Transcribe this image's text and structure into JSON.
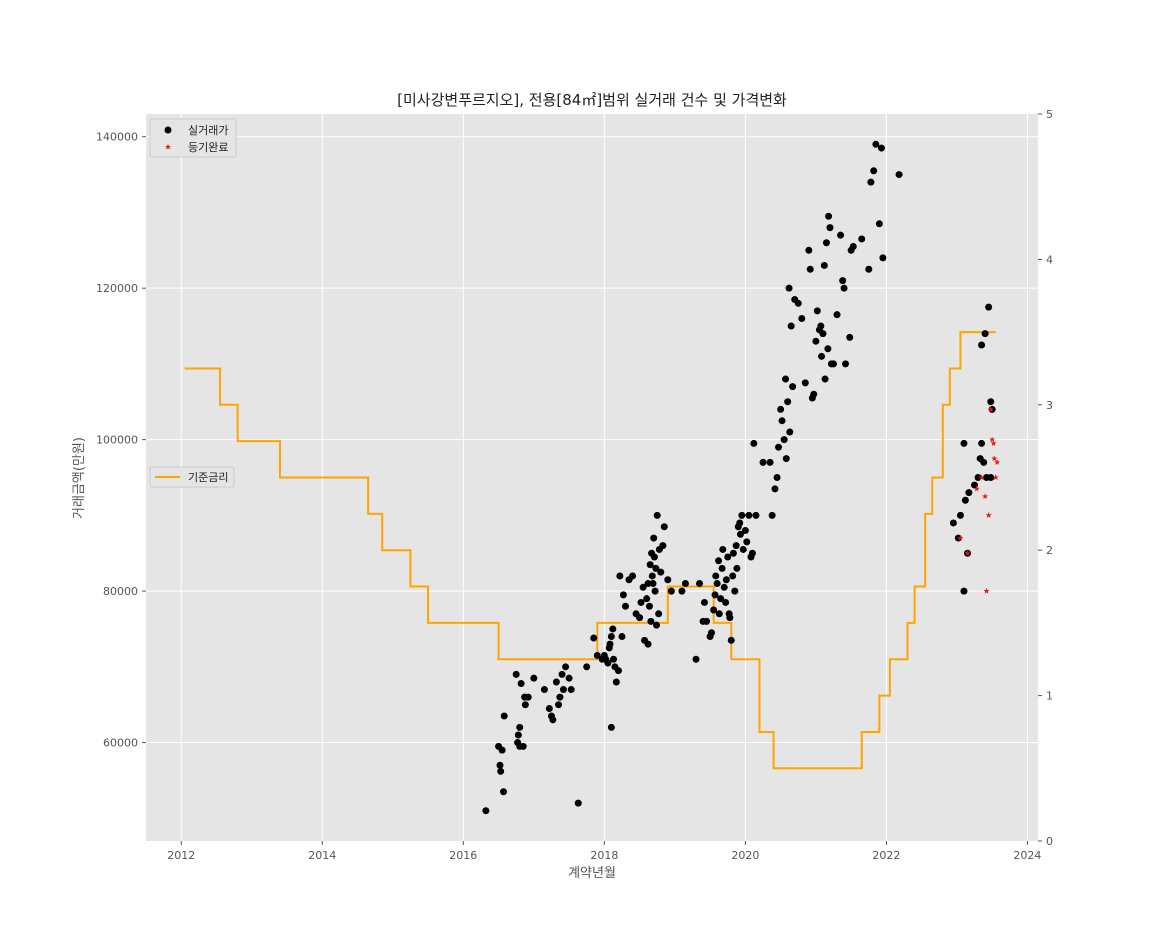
{
  "chart_data": {
    "type": "scatter",
    "title": "[미사강변푸르지오], 전용[84㎡]범위 실거래 건수 및 가격변화",
    "xlabel": "계약년월",
    "ylabel": "거래금액(만원)",
    "y2label": "",
    "xlim": [
      2011.5,
      2024.15
    ],
    "ylim": [
      47000,
      143000
    ],
    "y2lim": [
      0,
      5
    ],
    "xticks": [
      2012,
      2014,
      2016,
      2018,
      2020,
      2022,
      2024
    ],
    "yticks": [
      60000,
      80000,
      100000,
      120000,
      140000
    ],
    "y2ticks": [
      0,
      1,
      2,
      3,
      4,
      5
    ],
    "grid": true,
    "legend_placement": "top-left",
    "legend2_placement": "center-left",
    "colors": {
      "background": "#e5e5e5",
      "grid": "#ffffff",
      "trade": "#000000",
      "registered": "#e8180c",
      "rate": "#ffa500"
    },
    "series": [
      {
        "name": "실거래가",
        "kind": "scatter",
        "marker": "circle",
        "points": [
          [
            2016.32,
            51000
          ],
          [
            2016.5,
            59500
          ],
          [
            2016.52,
            57000
          ],
          [
            2016.53,
            56200
          ],
          [
            2016.55,
            59000
          ],
          [
            2016.57,
            53500
          ],
          [
            2016.58,
            63500
          ],
          [
            2016.75,
            69000
          ],
          [
            2016.77,
            60000
          ],
          [
            2016.78,
            61000
          ],
          [
            2016.8,
            62000
          ],
          [
            2016.8,
            59500
          ],
          [
            2016.82,
            67800
          ],
          [
            2016.85,
            59500
          ],
          [
            2016.87,
            66000
          ],
          [
            2016.88,
            65000
          ],
          [
            2016.92,
            66000
          ],
          [
            2017.0,
            68500
          ],
          [
            2017.15,
            67000
          ],
          [
            2017.22,
            64500
          ],
          [
            2017.25,
            63500
          ],
          [
            2017.27,
            63000
          ],
          [
            2017.32,
            68000
          ],
          [
            2017.35,
            65000
          ],
          [
            2017.37,
            66000
          ],
          [
            2017.4,
            69000
          ],
          [
            2017.42,
            67000
          ],
          [
            2017.45,
            70000
          ],
          [
            2017.5,
            68500
          ],
          [
            2017.53,
            67000
          ],
          [
            2017.63,
            52000
          ],
          [
            2017.75,
            70000
          ],
          [
            2017.85,
            73800
          ],
          [
            2017.9,
            71500
          ],
          [
            2017.97,
            71000
          ],
          [
            2018.0,
            71500
          ],
          [
            2018.02,
            71000
          ],
          [
            2018.05,
            70500
          ],
          [
            2018.07,
            72500
          ],
          [
            2018.08,
            73000
          ],
          [
            2018.1,
            74000
          ],
          [
            2018.12,
            75000
          ],
          [
            2018.13,
            71000
          ],
          [
            2018.1,
            62000
          ],
          [
            2018.15,
            70000
          ],
          [
            2018.17,
            68000
          ],
          [
            2018.2,
            69500
          ],
          [
            2018.22,
            82000
          ],
          [
            2018.25,
            74000
          ],
          [
            2018.27,
            79500
          ],
          [
            2018.3,
            78000
          ],
          [
            2018.35,
            81500
          ],
          [
            2018.4,
            82000
          ],
          [
            2018.45,
            77000
          ],
          [
            2018.5,
            76500
          ],
          [
            2018.52,
            78500
          ],
          [
            2018.55,
            80500
          ],
          [
            2018.57,
            73500
          ],
          [
            2018.6,
            79000
          ],
          [
            2018.62,
            81000
          ],
          [
            2018.65,
            83500
          ],
          [
            2018.67,
            85000
          ],
          [
            2018.68,
            82000
          ],
          [
            2018.7,
            87000
          ],
          [
            2018.72,
            80000
          ],
          [
            2018.73,
            83000
          ],
          [
            2018.75,
            90000
          ],
          [
            2018.77,
            77000
          ],
          [
            2018.78,
            85500
          ],
          [
            2018.8,
            82500
          ],
          [
            2018.83,
            86000
          ],
          [
            2018.85,
            88500
          ],
          [
            2018.62,
            73000
          ],
          [
            2018.64,
            78000
          ],
          [
            2018.66,
            76000
          ],
          [
            2018.69,
            81000
          ],
          [
            2018.71,
            84500
          ],
          [
            2018.74,
            75500
          ],
          [
            2018.9,
            81500
          ],
          [
            2018.95,
            80000
          ],
          [
            2019.1,
            80000
          ],
          [
            2019.15,
            81000
          ],
          [
            2019.3,
            71000
          ],
          [
            2019.35,
            81000
          ],
          [
            2019.4,
            76000
          ],
          [
            2019.42,
            78500
          ],
          [
            2019.45,
            76000
          ],
          [
            2019.5,
            74000
          ],
          [
            2019.52,
            74500
          ],
          [
            2019.55,
            77500
          ],
          [
            2019.57,
            79500
          ],
          [
            2019.58,
            82000
          ],
          [
            2019.6,
            81000
          ],
          [
            2019.62,
            84000
          ],
          [
            2019.63,
            77000
          ],
          [
            2019.65,
            79000
          ],
          [
            2019.67,
            83000
          ],
          [
            2019.68,
            85500
          ],
          [
            2019.7,
            80500
          ],
          [
            2019.72,
            78500
          ],
          [
            2019.73,
            81500
          ],
          [
            2019.75,
            84500
          ],
          [
            2019.77,
            77000
          ],
          [
            2019.78,
            76500
          ],
          [
            2019.8,
            73500
          ],
          [
            2019.82,
            82000
          ],
          [
            2019.83,
            85000
          ],
          [
            2019.85,
            80000
          ],
          [
            2019.87,
            86000
          ],
          [
            2019.88,
            83000
          ],
          [
            2019.9,
            88500
          ],
          [
            2019.92,
            89000
          ],
          [
            2019.93,
            87500
          ],
          [
            2019.95,
            90000
          ],
          [
            2019.97,
            85500
          ],
          [
            2020.0,
            88000
          ],
          [
            2020.02,
            86500
          ],
          [
            2020.05,
            90000
          ],
          [
            2020.08,
            84500
          ],
          [
            2020.1,
            85000
          ],
          [
            2020.12,
            99500
          ],
          [
            2020.15,
            90000
          ],
          [
            2020.25,
            97000
          ],
          [
            2020.35,
            97000
          ],
          [
            2020.38,
            90000
          ],
          [
            2020.42,
            93500
          ],
          [
            2020.45,
            95000
          ],
          [
            2020.47,
            99000
          ],
          [
            2020.5,
            104000
          ],
          [
            2020.52,
            102500
          ],
          [
            2020.55,
            100000
          ],
          [
            2020.57,
            108000
          ],
          [
            2020.58,
            97500
          ],
          [
            2020.6,
            105000
          ],
          [
            2020.62,
            120000
          ],
          [
            2020.63,
            101000
          ],
          [
            2020.65,
            115000
          ],
          [
            2020.67,
            107000
          ],
          [
            2020.7,
            118500
          ],
          [
            2020.75,
            118000
          ],
          [
            2020.8,
            116000
          ],
          [
            2020.85,
            107500
          ],
          [
            2020.9,
            125000
          ],
          [
            2020.92,
            122500
          ],
          [
            2020.95,
            105500
          ],
          [
            2020.97,
            106000
          ],
          [
            2021.0,
            113000
          ],
          [
            2021.02,
            117000
          ],
          [
            2021.05,
            114500
          ],
          [
            2021.07,
            115000
          ],
          [
            2021.08,
            111000
          ],
          [
            2021.1,
            114000
          ],
          [
            2021.12,
            123000
          ],
          [
            2021.13,
            108000
          ],
          [
            2021.15,
            126000
          ],
          [
            2021.17,
            112000
          ],
          [
            2021.18,
            129500
          ],
          [
            2021.2,
            128000
          ],
          [
            2021.22,
            110000
          ],
          [
            2021.25,
            110000
          ],
          [
            2021.3,
            116500
          ],
          [
            2021.35,
            127000
          ],
          [
            2021.38,
            121000
          ],
          [
            2021.4,
            120000
          ],
          [
            2021.42,
            110000
          ],
          [
            2021.48,
            113500
          ],
          [
            2021.5,
            125000
          ],
          [
            2021.53,
            125500
          ],
          [
            2021.65,
            126500
          ],
          [
            2021.75,
            122500
          ],
          [
            2021.78,
            134000
          ],
          [
            2021.82,
            135500
          ],
          [
            2021.85,
            139000
          ],
          [
            2021.9,
            128500
          ],
          [
            2021.95,
            124000
          ],
          [
            2021.93,
            138500
          ],
          [
            2022.18,
            135000
          ],
          [
            2022.95,
            89000
          ],
          [
            2023.02,
            87000
          ],
          [
            2023.05,
            90000
          ],
          [
            2023.1,
            80000
          ],
          [
            2023.1,
            99500
          ],
          [
            2023.12,
            92000
          ],
          [
            2023.15,
            85000
          ],
          [
            2023.17,
            93000
          ],
          [
            2023.25,
            94000
          ],
          [
            2023.3,
            95000
          ],
          [
            2023.33,
            97500
          ],
          [
            2023.35,
            99500
          ],
          [
            2023.38,
            97000
          ],
          [
            2023.4,
            114000
          ],
          [
            2023.42,
            95000
          ],
          [
            2023.45,
            117500
          ],
          [
            2023.48,
            105000
          ],
          [
            2023.5,
            104000
          ],
          [
            2023.35,
            112500
          ],
          [
            2023.48,
            95000
          ]
        ]
      },
      {
        "name": "등기완료",
        "kind": "scatter",
        "marker": "star",
        "points": [
          [
            2023.05,
            87000
          ],
          [
            2023.15,
            85000
          ],
          [
            2023.28,
            93500
          ],
          [
            2023.4,
            92500
          ],
          [
            2023.42,
            80000
          ],
          [
            2023.45,
            90000
          ],
          [
            2023.48,
            104000
          ],
          [
            2023.5,
            100000
          ],
          [
            2023.52,
            99500
          ],
          [
            2023.53,
            97500
          ],
          [
            2023.57,
            97000
          ],
          [
            2023.55,
            95000
          ],
          [
            2023.35,
            95000
          ]
        ]
      },
      {
        "name": "기준금리",
        "kind": "step",
        "axis": "right",
        "points": [
          [
            2012.05,
            3.25
          ],
          [
            2012.55,
            3.0
          ],
          [
            2012.8,
            2.75
          ],
          [
            2013.4,
            2.5
          ],
          [
            2014.65,
            2.25
          ],
          [
            2014.85,
            2.0
          ],
          [
            2015.25,
            1.75
          ],
          [
            2015.5,
            1.5
          ],
          [
            2016.5,
            1.25
          ],
          [
            2017.9,
            1.5
          ],
          [
            2018.9,
            1.75
          ],
          [
            2019.55,
            1.5
          ],
          [
            2019.8,
            1.25
          ],
          [
            2020.2,
            0.75
          ],
          [
            2020.4,
            0.5
          ],
          [
            2021.65,
            0.75
          ],
          [
            2021.9,
            1.0
          ],
          [
            2022.05,
            1.25
          ],
          [
            2022.3,
            1.5
          ],
          [
            2022.4,
            1.75
          ],
          [
            2022.55,
            2.25
          ],
          [
            2022.65,
            2.5
          ],
          [
            2022.8,
            3.0
          ],
          [
            2022.9,
            3.25
          ],
          [
            2023.05,
            3.5
          ],
          [
            2023.55,
            3.5
          ]
        ]
      }
    ]
  }
}
